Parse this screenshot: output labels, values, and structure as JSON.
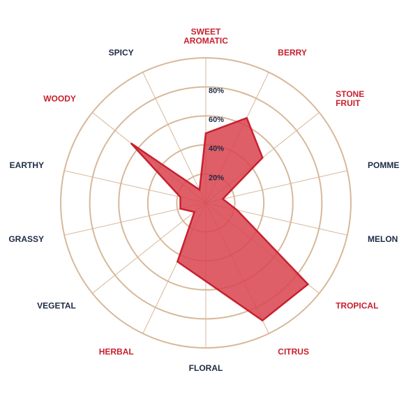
{
  "chart_data": {
    "type": "radar",
    "max": 100,
    "ring_values": [
      20,
      40,
      60,
      80,
      100
    ],
    "tick_labels": [
      "20%",
      "40%",
      "60%",
      "80%"
    ],
    "categories": [
      {
        "name": "SWEET\nAROMATIC",
        "highlight": true
      },
      {
        "name": "BERRY",
        "highlight": true
      },
      {
        "name": "STONE\nFRUIT",
        "highlight": true
      },
      {
        "name": "POMME",
        "highlight": false
      },
      {
        "name": "MELON",
        "highlight": false
      },
      {
        "name": "TROPICAL",
        "highlight": true
      },
      {
        "name": "CITRUS",
        "highlight": true
      },
      {
        "name": "FLORAL",
        "highlight": false
      },
      {
        "name": "HERBAL",
        "highlight": true
      },
      {
        "name": "VEGETAL",
        "highlight": false
      },
      {
        "name": "GRASSY",
        "highlight": false
      },
      {
        "name": "EARTHY",
        "highlight": false
      },
      {
        "name": "WOODY",
        "highlight": true
      },
      {
        "name": "SPICY",
        "highlight": false
      }
    ],
    "values": [
      48,
      65,
      50,
      12,
      22,
      90,
      90,
      54,
      45,
      10,
      18,
      18,
      66,
      10
    ],
    "colors": {
      "fill": "#d9434f",
      "stroke": "#c8202e",
      "grid": "#d7b89a",
      "label_red": "#c8202e",
      "label_dark": "#1d2b45",
      "tick": "#1d2b45"
    }
  }
}
